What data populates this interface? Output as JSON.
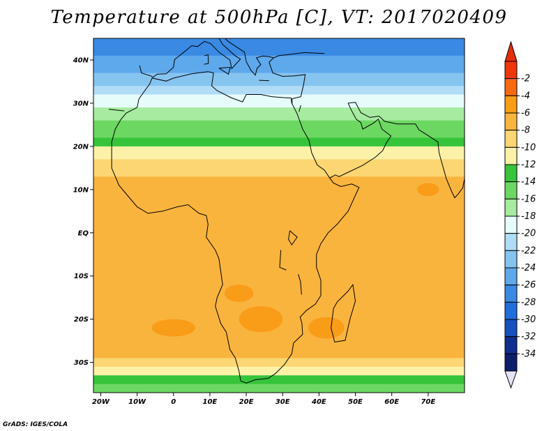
{
  "title": "Temperature at 500hPa [C], VT: 2017020409",
  "footer": "GrADS: IGES/COLA",
  "chart_data": {
    "type": "heatmap",
    "title": "Temperature at 500hPa [C], VT: 2017020409",
    "variable": "Temperature at 500hPa",
    "unit": "C",
    "valid_time": "2017020409",
    "lon_range": [
      -22,
      80
    ],
    "lat_range": [
      -37,
      45
    ],
    "x_ticks": [
      {
        "value": -20,
        "label": "20W"
      },
      {
        "value": -10,
        "label": "10W"
      },
      {
        "value": 0,
        "label": "0"
      },
      {
        "value": 10,
        "label": "10E"
      },
      {
        "value": 20,
        "label": "20E"
      },
      {
        "value": 30,
        "label": "30E"
      },
      {
        "value": 40,
        "label": "40E"
      },
      {
        "value": 50,
        "label": "50E"
      },
      {
        "value": 60,
        "label": "60E"
      },
      {
        "value": 70,
        "label": "70E"
      }
    ],
    "y_ticks": [
      {
        "value": 40,
        "label": "40N"
      },
      {
        "value": 30,
        "label": "30N"
      },
      {
        "value": 20,
        "label": "20N"
      },
      {
        "value": 10,
        "label": "10N"
      },
      {
        "value": 0,
        "label": "EQ"
      },
      {
        "value": -10,
        "label": "10S"
      },
      {
        "value": -20,
        "label": "20S"
      },
      {
        "value": -30,
        "label": "30S"
      }
    ],
    "colorbar": {
      "labels": [
        "-2",
        "-4",
        "-6",
        "-8",
        "-10",
        "-12",
        "-14",
        "-16",
        "-18",
        "-20",
        "-22",
        "-24",
        "-26",
        "-28",
        "-30",
        "-32",
        "-34"
      ],
      "colors": [
        "#f0370c",
        "#f76a0f",
        "#f99c18",
        "#f9b43e",
        "#fbd673",
        "#fdf1a8",
        "#36c43a",
        "#6cd862",
        "#a6eba0",
        "#e6fcfa",
        "#b0dcf6",
        "#86c4f0",
        "#5ea8ec",
        "#3a8ae4",
        "#1f6edc",
        "#1651bf",
        "#102e8f",
        "#0c1f6b"
      ],
      "top_triangle_color": "#e52d0a",
      "bottom_triangle_color": "#e3e3f6"
    },
    "zones": [
      {
        "lat_from": 45,
        "lat_to": 41,
        "value": -26
      },
      {
        "lat_from": 41,
        "lat_to": 37,
        "value": -24
      },
      {
        "lat_from": 37,
        "lat_to": 34,
        "value": -22
      },
      {
        "lat_from": 34,
        "lat_to": 32,
        "value": -20
      },
      {
        "lat_from": 32,
        "lat_to": 29,
        "value": -18
      },
      {
        "lat_from": 29,
        "lat_to": 26,
        "value": -16
      },
      {
        "lat_from": 26,
        "lat_to": 22,
        "value": -14
      },
      {
        "lat_from": 22,
        "lat_to": 20,
        "value": -12
      },
      {
        "lat_from": 20,
        "lat_to": 17,
        "value": -10
      },
      {
        "lat_from": 17,
        "lat_to": 13,
        "value": -8
      },
      {
        "lat_from": 13,
        "lat_to": -10,
        "value": -7
      },
      {
        "lat_from": -10,
        "lat_to": -26,
        "value": -6
      },
      {
        "lat_from": -26,
        "lat_to": -29,
        "value": -7
      },
      {
        "lat_from": -29,
        "lat_to": -31,
        "value": -8
      },
      {
        "lat_from": -31,
        "lat_to": -33,
        "value": -10
      },
      {
        "lat_from": -33,
        "lat_to": -35,
        "value": -12
      },
      {
        "lat_from": -35,
        "lat_to": -37,
        "value": -14
      }
    ],
    "warm_patches": [
      {
        "lon": 24,
        "lat": -20,
        "r_lon": 6,
        "r_lat": 3,
        "value": -4
      },
      {
        "lon": 42,
        "lat": -22,
        "r_lon": 5,
        "r_lat": 2.5,
        "value": -4
      },
      {
        "lon": 0,
        "lat": -22,
        "r_lon": 6,
        "r_lat": 2,
        "value": -4
      },
      {
        "lon": 18,
        "lat": -14,
        "r_lon": 4,
        "r_lat": 2,
        "value": -4
      },
      {
        "lon": 70,
        "lat": 10,
        "r_lon": 3,
        "r_lat": 1.5,
        "value": -4
      }
    ],
    "grid": false
  }
}
